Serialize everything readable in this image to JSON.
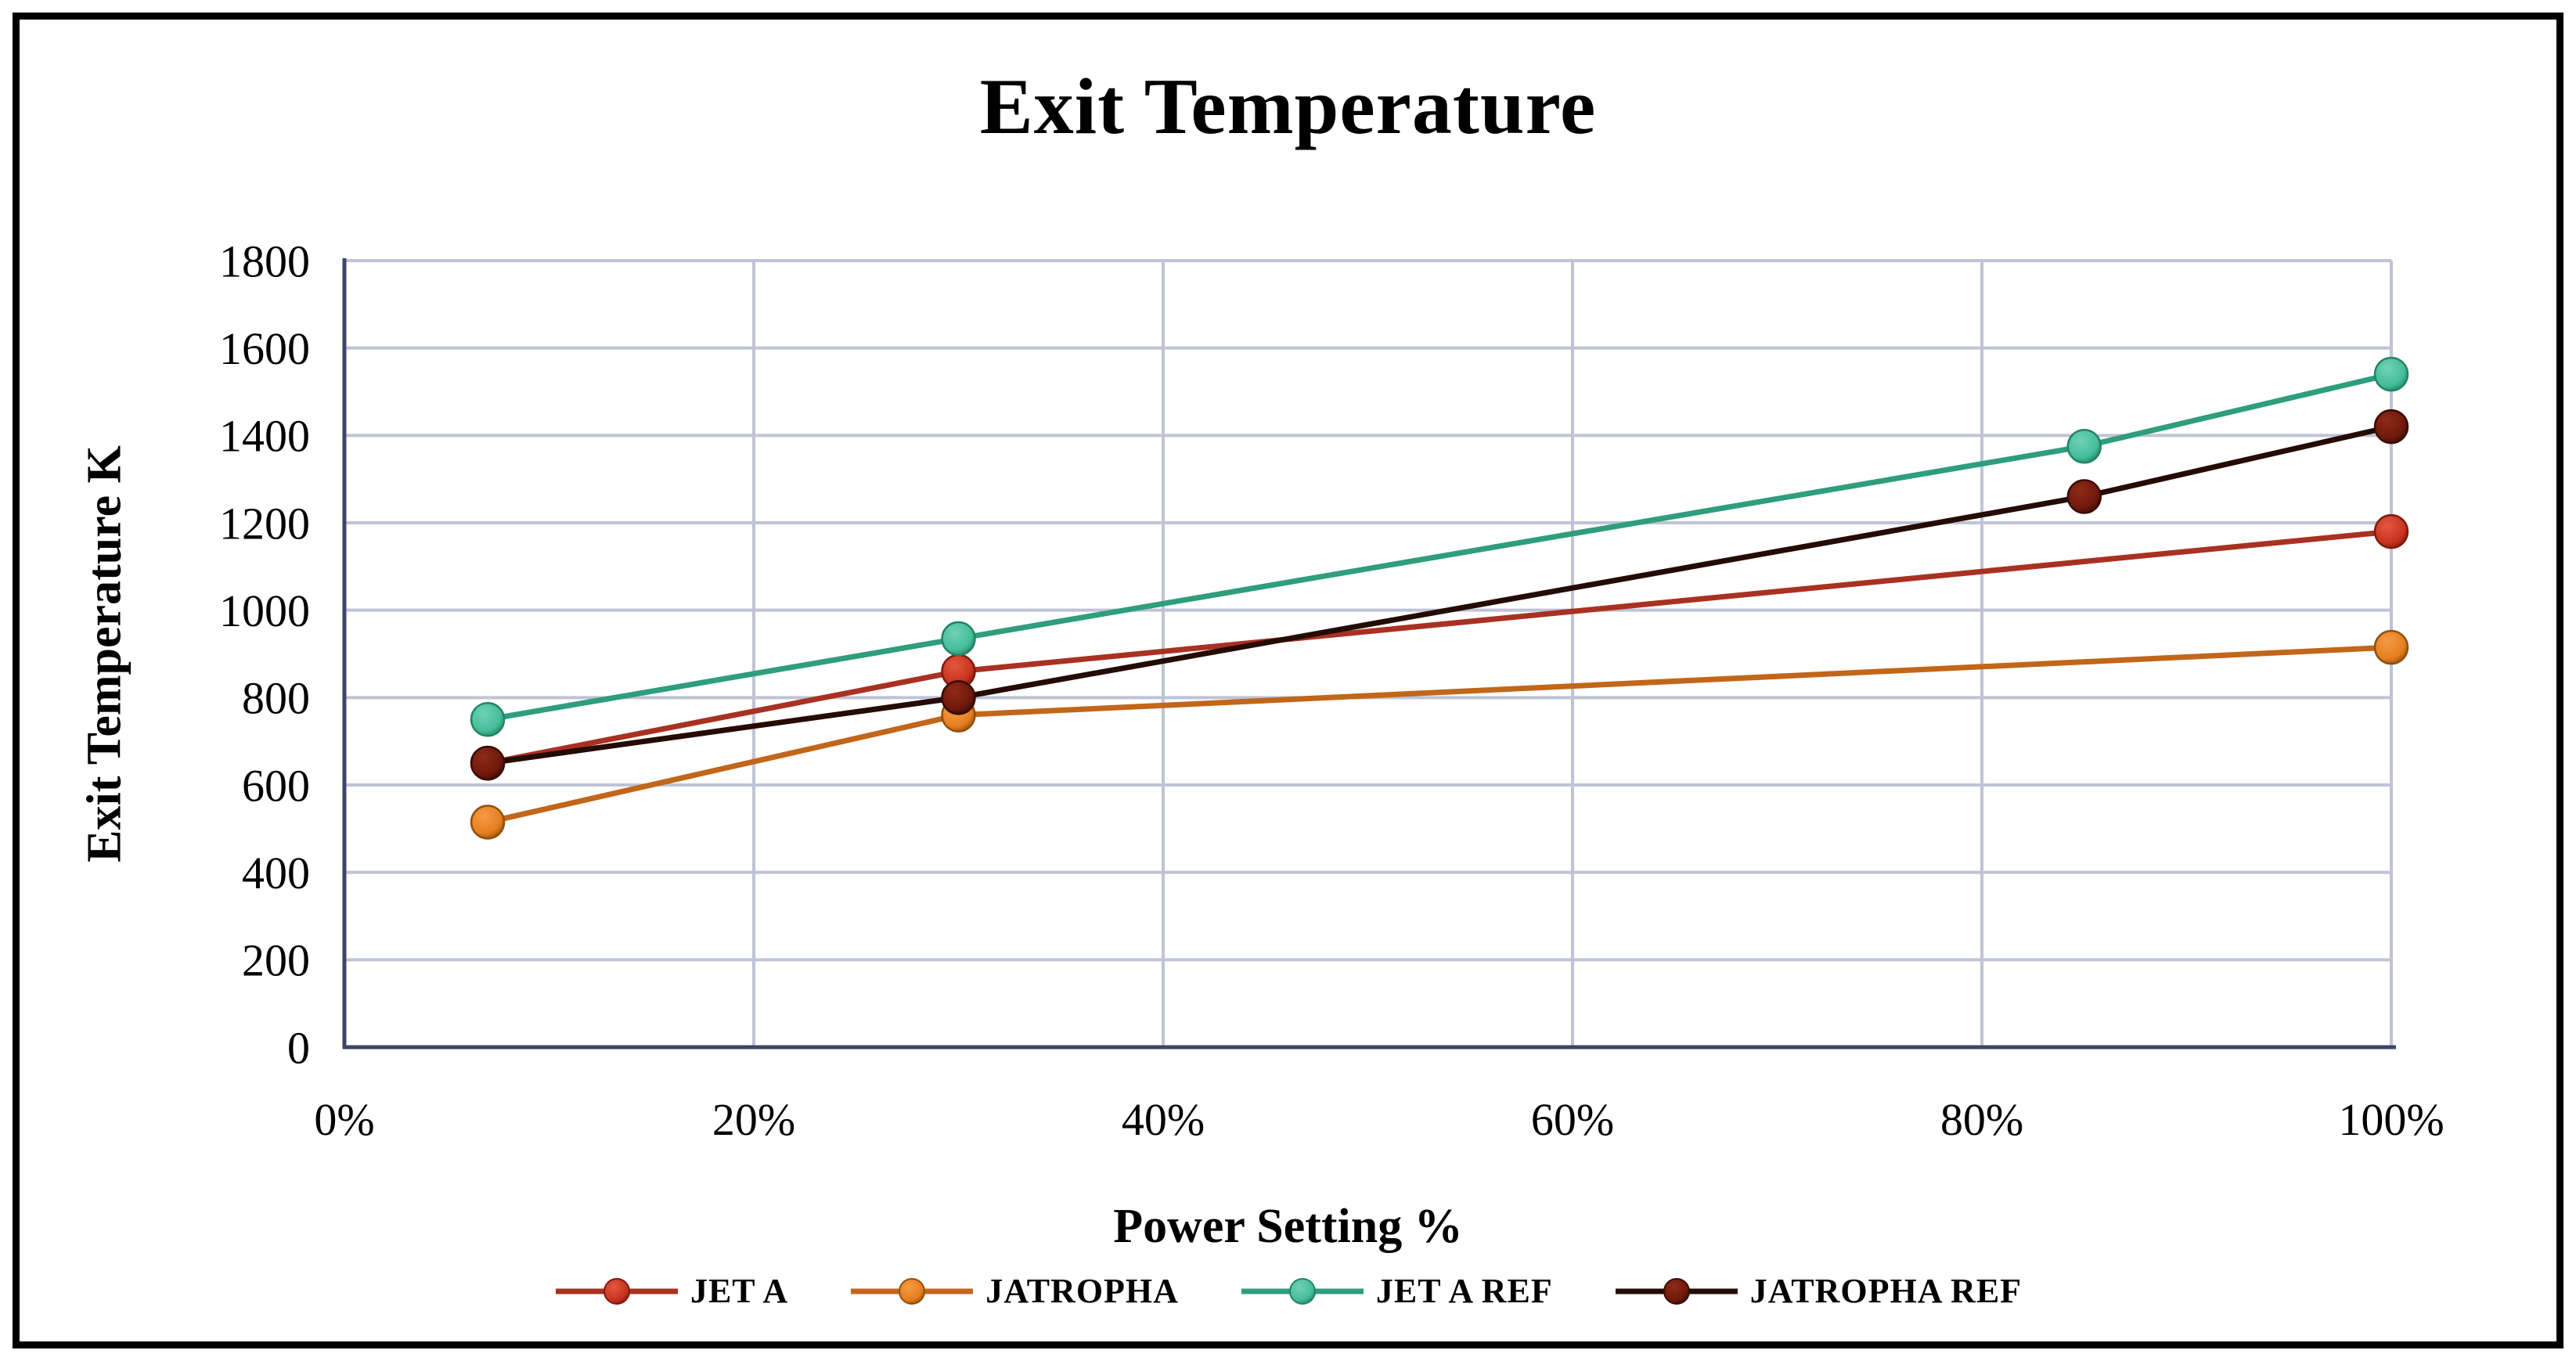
{
  "chart_data": {
    "type": "line",
    "title": "Exit Temperature",
    "xlabel": "Power Setting %",
    "ylabel": "Exit Temperature K",
    "xlim": [
      0,
      100
    ],
    "ylim": [
      0,
      1800
    ],
    "x_ticks": [
      0,
      20,
      40,
      60,
      80,
      100
    ],
    "x_tick_labels": [
      "0%",
      "20%",
      "40%",
      "60%",
      "80%",
      "100%"
    ],
    "y_ticks": [
      0,
      200,
      400,
      600,
      800,
      1000,
      1200,
      1400,
      1600,
      1800
    ],
    "grid": true,
    "legend_position": "bottom",
    "axis_color": "#3F4468",
    "grid_color": "#BFC3D6",
    "background": "#ffffff",
    "border_color": "#000000",
    "series": [
      {
        "name": "JET A",
        "x": [
          7,
          30,
          100
        ],
        "values": [
          650,
          860,
          1180
        ],
        "line_color": "#A93122",
        "marker_color": "#C8331F",
        "marker_light": "#E25840",
        "marker_edge": "#7E1A0E"
      },
      {
        "name": "JATROPHA",
        "x": [
          7,
          30,
          100
        ],
        "values": [
          515,
          760,
          915
        ],
        "line_color": "#C2661A",
        "marker_color": "#E67E22",
        "marker_light": "#F59B43",
        "marker_edge": "#8F5009"
      },
      {
        "name": "JET A REF",
        "x": [
          7,
          30,
          85,
          100
        ],
        "values": [
          750,
          935,
          1375,
          1540
        ],
        "line_color": "#2E9E7C",
        "marker_color": "#45BD9B",
        "marker_light": "#6FD2B4",
        "marker_edge": "#238363"
      },
      {
        "name": "JATROPHA REF",
        "x": [
          7,
          30,
          85,
          100
        ],
        "values": [
          650,
          800,
          1260,
          1420
        ],
        "line_color": "#250B04",
        "marker_color": "#6F190C",
        "marker_light": "#8F2B17",
        "marker_edge": "#380B03"
      }
    ]
  }
}
